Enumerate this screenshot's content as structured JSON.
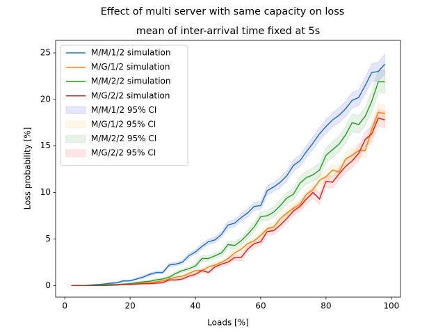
{
  "chart_data": {
    "type": "line",
    "suptitle": "Effect of multi server with same capacity on loss",
    "title": "mean of inter-arrival time fixed at 5s",
    "xlabel": "Loads [%]",
    "ylabel": "Loss probability [%]",
    "x": [
      2,
      4,
      6,
      8,
      10,
      12,
      14,
      16,
      18,
      20,
      22,
      24,
      26,
      28,
      30,
      32,
      34,
      36,
      38,
      40,
      42,
      44,
      46,
      48,
      50,
      52,
      54,
      56,
      58,
      60,
      62,
      64,
      66,
      68,
      70,
      72,
      74,
      76,
      78,
      80,
      82,
      84,
      86,
      88,
      90,
      92,
      94,
      96,
      98
    ],
    "xlim": [
      -2.8,
      102.8
    ],
    "xticks": [
      0,
      20,
      40,
      60,
      80,
      100
    ],
    "ylim": [
      -1.25,
      26.35
    ],
    "yticks": [
      0,
      5,
      10,
      15,
      20,
      25
    ],
    "legend": "upper left",
    "ci_alpha": 0.1,
    "series": [
      {
        "name": "M/M/1/2 simulation",
        "color": "#1f77b4",
        "ci_name": "M/M/1/2 95% CI",
        "ci_color": "#0000ff",
        "values": [
          0,
          0,
          0,
          0.05,
          0.1,
          0.15,
          0.25,
          0.3,
          0.5,
          0.5,
          0.7,
          0.9,
          1.2,
          1.4,
          1.4,
          2.2,
          2.3,
          2.5,
          3.2,
          3.6,
          4.2,
          4.7,
          4.9,
          5.5,
          6.5,
          6.7,
          7.3,
          7.8,
          8.5,
          8.6,
          10.2,
          10.6,
          11.1,
          11.8,
          12.9,
          13.4,
          14.4,
          15.3,
          16.3,
          17.1,
          17.8,
          18.3,
          19.0,
          19.9,
          20.2,
          21.5,
          22.9,
          23.0,
          23.8
        ],
        "ci": [
          0,
          0,
          0,
          0.05,
          0.05,
          0.05,
          0.1,
          0.1,
          0.1,
          0.1,
          0.1,
          0.15,
          0.15,
          0.15,
          0.15,
          0.2,
          0.2,
          0.2,
          0.25,
          0.25,
          0.3,
          0.3,
          0.3,
          0.35,
          0.4,
          0.4,
          0.4,
          0.45,
          0.45,
          0.45,
          0.5,
          0.5,
          0.55,
          0.55,
          0.6,
          0.6,
          0.65,
          0.65,
          0.7,
          0.75,
          0.75,
          0.8,
          0.8,
          0.85,
          0.85,
          0.9,
          0.95,
          1.0,
          1.1
        ]
      },
      {
        "name": "M/G/1/2 simulation",
        "color": "#ff7f0e",
        "ci_name": "M/G/1/2 95% CI",
        "ci_color": "#ffa500",
        "values": [
          0,
          0,
          0,
          0,
          0,
          0.05,
          0.05,
          0.1,
          0.1,
          0.15,
          0.2,
          0.25,
          0.3,
          0.4,
          0.5,
          0.7,
          0.9,
          1.0,
          1.3,
          1.6,
          1.6,
          2.0,
          2.2,
          2.5,
          2.9,
          3.5,
          3.9,
          4.5,
          4.8,
          5.4,
          6.1,
          6.3,
          7.2,
          7.8,
          8.3,
          8.7,
          9.8,
          10.3,
          11.3,
          11.7,
          12.4,
          12.2,
          13.6,
          14.0,
          14.5,
          14.5,
          16.8,
          18.6,
          18.5
        ],
        "ci": [
          0,
          0,
          0,
          0,
          0,
          0.02,
          0.02,
          0.05,
          0.05,
          0.05,
          0.05,
          0.1,
          0.1,
          0.1,
          0.1,
          0.15,
          0.15,
          0.15,
          0.2,
          0.2,
          0.2,
          0.25,
          0.25,
          0.25,
          0.3,
          0.3,
          0.35,
          0.35,
          0.4,
          0.4,
          0.4,
          0.45,
          0.45,
          0.5,
          0.5,
          0.55,
          0.55,
          0.6,
          0.6,
          0.65,
          0.65,
          0.7,
          0.7,
          0.75,
          0.75,
          0.8,
          0.85,
          0.9,
          0.9
        ]
      },
      {
        "name": "M/M/2/2 simulation",
        "color": "#2ca02c",
        "ci_name": "M/M/2/2 95% CI",
        "ci_color": "#008000",
        "values": [
          0,
          0,
          0,
          0,
          0.05,
          0.05,
          0.1,
          0.1,
          0.15,
          0.2,
          0.3,
          0.4,
          0.45,
          0.6,
          0.7,
          0.9,
          1.3,
          1.6,
          1.8,
          2.1,
          2.9,
          2.9,
          3.2,
          3.5,
          4.4,
          4.3,
          4.8,
          5.5,
          6.3,
          7.4,
          7.5,
          7.9,
          8.6,
          9.4,
          9.8,
          11.0,
          11.6,
          11.9,
          12.4,
          14.0,
          14.6,
          15.2,
          16.2,
          17.5,
          17.3,
          18.2,
          19.8,
          21.9,
          21.9
        ],
        "ci": [
          0,
          0,
          0,
          0,
          0.02,
          0.02,
          0.05,
          0.05,
          0.05,
          0.05,
          0.1,
          0.1,
          0.1,
          0.15,
          0.15,
          0.15,
          0.2,
          0.2,
          0.2,
          0.25,
          0.3,
          0.3,
          0.3,
          0.35,
          0.4,
          0.4,
          0.4,
          0.45,
          0.5,
          0.5,
          0.55,
          0.55,
          0.6,
          0.6,
          0.65,
          0.7,
          0.7,
          0.75,
          0.75,
          0.8,
          0.85,
          0.85,
          0.9,
          0.95,
          0.95,
          1.0,
          1.1,
          1.2,
          1.2
        ]
      },
      {
        "name": "M/G/2/2 simulation",
        "color": "#d62728",
        "ci_name": "M/G/2/2 95% CI",
        "ci_color": "#ff0000",
        "values": [
          0,
          0,
          0,
          0,
          0,
          0,
          0.02,
          0.05,
          0.1,
          0.1,
          0.15,
          0.2,
          0.2,
          0.25,
          0.3,
          0.6,
          0.6,
          0.7,
          1.0,
          1.2,
          1.6,
          1.4,
          2.0,
          2.3,
          2.5,
          3.0,
          3.0,
          3.9,
          4.5,
          4.7,
          5.8,
          5.9,
          6.5,
          7.2,
          8.0,
          8.5,
          9.3,
          10.0,
          9.3,
          11.2,
          11.1,
          12.0,
          12.8,
          13.4,
          14.2,
          15.7,
          16.3,
          18.0,
          17.8
        ],
        "ci": [
          0,
          0,
          0,
          0,
          0,
          0.02,
          0.02,
          0.05,
          0.05,
          0.05,
          0.05,
          0.1,
          0.1,
          0.1,
          0.1,
          0.15,
          0.15,
          0.15,
          0.2,
          0.2,
          0.2,
          0.25,
          0.25,
          0.25,
          0.3,
          0.3,
          0.35,
          0.35,
          0.4,
          0.4,
          0.4,
          0.45,
          0.45,
          0.5,
          0.5,
          0.55,
          0.55,
          0.6,
          0.6,
          0.65,
          0.65,
          0.7,
          0.7,
          0.75,
          0.75,
          0.8,
          0.85,
          0.9,
          0.9
        ]
      }
    ]
  }
}
